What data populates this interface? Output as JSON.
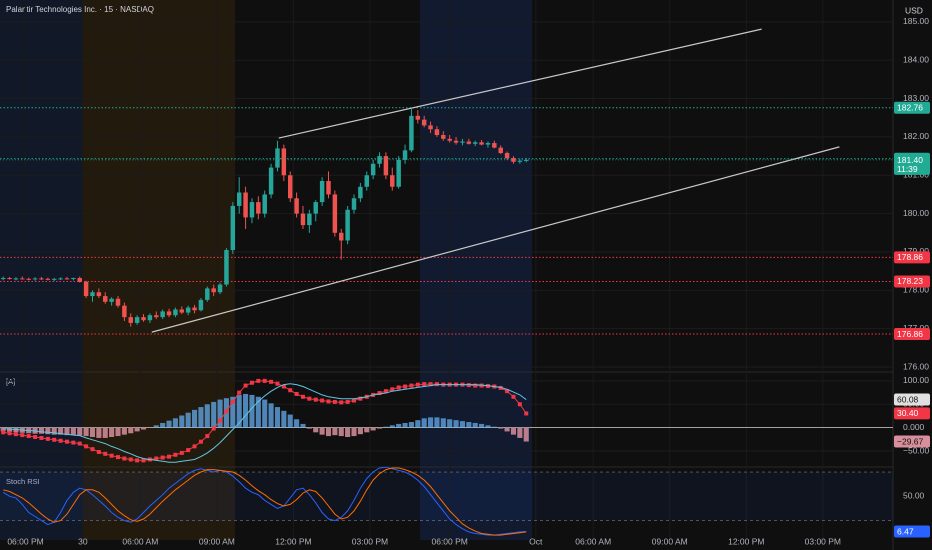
{
  "header": {
    "symbol": "Palantir Technologies Inc. · 15 · NASDAQ",
    "currency": "USD"
  },
  "chart_data": [
    {
      "type": "candlestick",
      "up_color": "#26a69a",
      "down_color": "#ef5350",
      "xlim": [
        0,
        140
      ],
      "xticks": [
        {
          "value": 4,
          "label": "06:00 PM"
        },
        {
          "value": 13,
          "label": "30"
        },
        {
          "value": 22,
          "label": "06:00 AM"
        },
        {
          "value": 34,
          "label": "09:00 AM"
        },
        {
          "value": 46,
          "label": "12:00 PM"
        },
        {
          "value": 58,
          "label": "03:00 PM"
        },
        {
          "value": 70.5,
          "label": "06:00 PM"
        },
        {
          "value": 84,
          "label": "Oct"
        },
        {
          "value": 93,
          "label": "06:00 AM"
        },
        {
          "value": 105,
          "label": "09:00 AM"
        },
        {
          "value": 117,
          "label": "12:00 PM"
        },
        {
          "value": 129,
          "label": "03:00 PM"
        }
      ],
      "ylim": [
        175.87,
        185.57
      ],
      "yticks": [
        {
          "value": 176,
          "label": "176.00"
        },
        {
          "value": 177,
          "label": "177.00"
        },
        {
          "value": 178,
          "label": "178.00"
        },
        {
          "value": 179,
          "label": "179.00"
        },
        {
          "value": 180,
          "label": "180.00"
        },
        {
          "value": 181,
          "label": "181.00"
        },
        {
          "value": 182,
          "label": "182.00"
        },
        {
          "value": 183,
          "label": "183.00"
        },
        {
          "value": 184,
          "label": "184.00"
        },
        {
          "value": 185,
          "label": "185.00"
        }
      ],
      "levels": [
        {
          "value": 182.76,
          "color": "#22ab94"
        },
        {
          "value": 181.43,
          "color": "#22ab94"
        },
        {
          "value": 178.86,
          "color": "#f23645"
        },
        {
          "value": 178.23,
          "color": "#f23645"
        },
        {
          "value": 176.86,
          "color": "#f23645"
        }
      ],
      "last_price": {
        "value": 181.4,
        "label": "181.40",
        "countdown": "11:39",
        "color": "#22ab94"
      },
      "trendlines": [
        {
          "x": [
            43.7,
            119.4
          ],
          "y": [
            181.97,
            184.81
          ]
        },
        {
          "x": [
            23.8,
            131.6
          ],
          "y": [
            176.91,
            181.74
          ]
        }
      ],
      "ohlc": [
        [
          178.3,
          178.36,
          178.26,
          178.32
        ],
        [
          178.32,
          178.35,
          178.28,
          178.3
        ],
        [
          178.3,
          178.34,
          178.26,
          178.31
        ],
        [
          178.31,
          178.36,
          178.28,
          178.3
        ],
        [
          178.3,
          178.33,
          178.26,
          178.29
        ],
        [
          178.29,
          178.34,
          178.25,
          178.31
        ],
        [
          178.31,
          178.35,
          178.27,
          178.3
        ],
        [
          178.3,
          178.33,
          178.26,
          178.28
        ],
        [
          178.28,
          178.32,
          178.24,
          178.3
        ],
        [
          178.3,
          178.34,
          178.27,
          178.31
        ],
        [
          178.31,
          178.35,
          178.28,
          178.3
        ],
        [
          178.3,
          178.33,
          178.26,
          178.32
        ],
        [
          178.32,
          178.36,
          178.2,
          178.22
        ],
        [
          178.22,
          178.25,
          177.8,
          177.85
        ],
        [
          177.85,
          178.0,
          177.7,
          177.95
        ],
        [
          177.95,
          178.05,
          177.8,
          177.85
        ],
        [
          177.85,
          177.95,
          177.65,
          177.7
        ],
        [
          177.7,
          177.82,
          177.6,
          177.78
        ],
        [
          177.78,
          177.85,
          177.55,
          177.6
        ],
        [
          177.6,
          177.68,
          177.2,
          177.3
        ],
        [
          177.3,
          177.4,
          177.05,
          177.15
        ],
        [
          177.15,
          177.35,
          177.1,
          177.3
        ],
        [
          177.3,
          177.38,
          177.18,
          177.22
        ],
        [
          177.22,
          177.4,
          177.15,
          177.35
        ],
        [
          177.35,
          177.45,
          177.25,
          177.3
        ],
        [
          177.3,
          177.5,
          177.25,
          177.45
        ],
        [
          177.45,
          177.52,
          177.3,
          177.35
        ],
        [
          177.35,
          177.55,
          177.3,
          177.5
        ],
        [
          177.5,
          177.58,
          177.38,
          177.42
        ],
        [
          177.42,
          177.6,
          177.35,
          177.55
        ],
        [
          177.55,
          177.62,
          177.4,
          177.48
        ],
        [
          177.48,
          177.8,
          177.45,
          177.75
        ],
        [
          177.75,
          178.1,
          177.7,
          178.05
        ],
        [
          178.05,
          178.15,
          177.85,
          177.95
        ],
        [
          177.95,
          178.2,
          177.9,
          178.15
        ],
        [
          178.15,
          179.1,
          178.1,
          179.05
        ],
        [
          179.05,
          180.3,
          178.95,
          180.2
        ],
        [
          180.2,
          180.95,
          180.0,
          180.55
        ],
        [
          180.55,
          180.7,
          179.6,
          179.9
        ],
        [
          179.9,
          180.4,
          179.75,
          180.3
        ],
        [
          180.3,
          180.45,
          179.85,
          180.0
        ],
        [
          180.0,
          180.6,
          179.9,
          180.5
        ],
        [
          180.5,
          181.3,
          180.4,
          181.2
        ],
        [
          181.2,
          181.9,
          181.1,
          181.7
        ],
        [
          181.7,
          181.8,
          180.85,
          181.0
        ],
        [
          181.0,
          181.1,
          180.3,
          180.4
        ],
        [
          180.4,
          180.55,
          179.9,
          180.0
        ],
        [
          180.0,
          180.2,
          179.6,
          179.7
        ],
        [
          179.7,
          180.1,
          179.5,
          180.0
        ],
        [
          180.0,
          180.35,
          179.8,
          180.3
        ],
        [
          180.3,
          180.95,
          180.2,
          180.85
        ],
        [
          180.85,
          181.1,
          180.4,
          180.5
        ],
        [
          180.5,
          180.6,
          179.4,
          179.5
        ],
        [
          179.5,
          179.6,
          178.8,
          179.3
        ],
        [
          179.3,
          180.2,
          179.2,
          180.1
        ],
        [
          180.1,
          180.5,
          180.0,
          180.4
        ],
        [
          180.4,
          180.8,
          180.3,
          180.7
        ],
        [
          180.7,
          181.1,
          180.6,
          181.0
        ],
        [
          181.0,
          181.4,
          180.9,
          181.3
        ],
        [
          181.3,
          181.6,
          181.2,
          181.5
        ],
        [
          181.5,
          181.6,
          180.9,
          181.0
        ],
        [
          181.0,
          181.2,
          180.6,
          180.7
        ],
        [
          180.7,
          181.5,
          180.65,
          181.4
        ],
        [
          181.4,
          181.8,
          181.3,
          181.65
        ],
        [
          181.65,
          182.75,
          181.6,
          182.55
        ],
        [
          182.55,
          182.7,
          182.35,
          182.45
        ],
        [
          182.45,
          182.55,
          182.25,
          182.3
        ],
        [
          182.3,
          182.4,
          182.1,
          182.2
        ],
        [
          182.2,
          182.28,
          182.0,
          182.05
        ],
        [
          182.05,
          182.15,
          181.9,
          181.95
        ],
        [
          181.95,
          182.05,
          181.85,
          181.9
        ],
        [
          181.9,
          182.0,
          181.8,
          181.85
        ],
        [
          181.85,
          181.95,
          181.78,
          181.88
        ],
        [
          181.88,
          181.95,
          181.8,
          181.82
        ],
        [
          181.82,
          181.9,
          181.76,
          181.86
        ],
        [
          181.86,
          181.92,
          181.78,
          181.8
        ],
        [
          181.8,
          181.88,
          181.72,
          181.84
        ],
        [
          181.84,
          181.9,
          181.7,
          181.72
        ],
        [
          181.72,
          181.78,
          181.55,
          181.58
        ],
        [
          181.58,
          181.62,
          181.4,
          181.45
        ],
        [
          181.45,
          181.5,
          181.3,
          181.35
        ],
        [
          181.35,
          181.42,
          181.3,
          181.38
        ],
        [
          181.38,
          181.45,
          181.34,
          181.4
        ]
      ]
    },
    {
      "type": "macd",
      "title": "[A]",
      "ylim": [
        -82,
        119
      ],
      "yticks": [
        {
          "value": 100,
          "label": "100.00"
        },
        {
          "value": 50,
          "label": "50.00"
        },
        {
          "value": 0,
          "label": "0.000"
        },
        {
          "value": -50,
          "label": "−50.00"
        }
      ],
      "histogram": {
        "up_color": "#5b9bd5",
        "down_color": "#d88f9c",
        "last_label": "−29.67",
        "values": [
          -8,
          -9,
          -10,
          -11,
          -12,
          -13,
          -13,
          -14,
          -15,
          -15,
          -16,
          -16,
          -17,
          -18,
          -20,
          -22,
          -22,
          -20,
          -18,
          -15,
          -12,
          -8,
          -4,
          0,
          5,
          10,
          15,
          20,
          26,
          32,
          38,
          44,
          50,
          55,
          60,
          63,
          66,
          70,
          72,
          70,
          66,
          60,
          52,
          44,
          36,
          28,
          18,
          8,
          -2,
          -10,
          -15,
          -18,
          -16,
          -18,
          -20,
          -18,
          -14,
          -10,
          -6,
          -2,
          2,
          5,
          8,
          10,
          12,
          16,
          20,
          22,
          22,
          20,
          18,
          16,
          14,
          12,
          10,
          8,
          5,
          2,
          -2,
          -8,
          -15,
          -22,
          -29.67
        ]
      },
      "series": [
        {
          "color": "#f23645",
          "last_label": "30.40",
          "values": [
            -10,
            -12,
            -14,
            -16,
            -18,
            -20,
            -22,
            -24,
            -26,
            -28,
            -30,
            -32,
            -34,
            -40,
            -46,
            -52,
            -56,
            -60,
            -63,
            -66,
            -68,
            -70,
            -70,
            -68,
            -66,
            -64,
            -62,
            -58,
            -54,
            -48,
            -40,
            -30,
            -18,
            -2,
            15,
            35,
            55,
            75,
            90,
            96,
            100,
            100,
            98,
            94,
            88,
            80,
            72,
            66,
            62,
            60,
            58,
            56,
            55,
            54,
            55,
            58,
            62,
            66,
            70,
            74,
            78,
            82,
            86,
            88,
            90,
            92,
            93,
            93,
            93,
            92,
            92,
            92,
            92,
            91,
            90,
            90,
            89,
            88,
            85,
            78,
            66,
            50,
            30.4
          ]
        },
        {
          "color": "#5ec8e5",
          "values": [
            -2,
            -3,
            -4,
            -5,
            -6,
            -7,
            -9,
            -10,
            -11,
            -13,
            -14,
            -16,
            -17,
            -22,
            -26,
            -30,
            -34,
            -40,
            -45,
            -51,
            -56,
            -62,
            -66,
            -68,
            -70,
            -72,
            -74,
            -74,
            -72,
            -70,
            -68,
            -62,
            -54,
            -44,
            -32,
            -18,
            -4,
            10,
            26,
            42,
            56,
            68,
            78,
            86,
            92,
            94,
            92,
            88,
            82,
            76,
            70,
            66,
            64,
            62,
            62,
            62,
            64,
            66,
            70,
            72,
            74,
            78,
            80,
            82,
            84,
            86,
            88,
            90,
            92,
            92,
            92,
            92,
            92,
            92,
            92,
            91,
            90,
            88,
            86,
            82,
            76,
            70,
            60.08
          ]
        }
      ]
    },
    {
      "type": "stoch",
      "title": "Stoch RSI",
      "ylim": [
        -4,
        85
      ],
      "yticks": [
        {
          "value": 50,
          "label": "50.00"
        }
      ],
      "bands": [
        20,
        80
      ],
      "series": [
        {
          "color": "#2962ff",
          "values": [
            55,
            50,
            48,
            40,
            30,
            25,
            20,
            15,
            18,
            30,
            45,
            55,
            60,
            58,
            52,
            45,
            38,
            30,
            24,
            20,
            18,
            22,
            30,
            38,
            45,
            52,
            60,
            66,
            72,
            78,
            82,
            84,
            82,
            80,
            82,
            80,
            75,
            68,
            60,
            55,
            52,
            45,
            40,
            35,
            38,
            48,
            58,
            60,
            52,
            42,
            30,
            22,
            20,
            24,
            32,
            45,
            60,
            72,
            80,
            85,
            86,
            84,
            82,
            80,
            76,
            70,
            62,
            52,
            42,
            32,
            22,
            15,
            10,
            6,
            4,
            3,
            2,
            2,
            3,
            4,
            5,
            6,
            6.47
          ]
        },
        {
          "color": "#ff6d00",
          "values": [
            58,
            56,
            52,
            48,
            42,
            35,
            28,
            22,
            18,
            20,
            28,
            40,
            52,
            58,
            58,
            55,
            48,
            40,
            32,
            26,
            21,
            19,
            22,
            28,
            36,
            44,
            51,
            58,
            64,
            70,
            76,
            80,
            83,
            83,
            82,
            81,
            80,
            76,
            70,
            63,
            57,
            52,
            46,
            41,
            38,
            40,
            46,
            54,
            58,
            56,
            48,
            38,
            28,
            22,
            24,
            32,
            44,
            58,
            70,
            78,
            83,
            85,
            85,
            83,
            80,
            76,
            70,
            62,
            52,
            42,
            32,
            24,
            16,
            11,
            7,
            4,
            3,
            2,
            2,
            3,
            4,
            5,
            6
          ]
        }
      ]
    }
  ]
}
